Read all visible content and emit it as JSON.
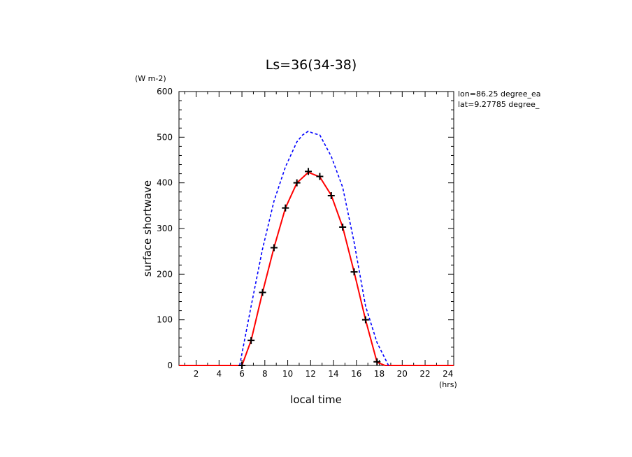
{
  "chart_data": {
    "type": "line",
    "title": "Ls=36(34-38)",
    "xlabel": "local time",
    "ylabel": "surface shortwave",
    "x_unit": "(hrs)",
    "y_unit": "(W m-2)",
    "annotations": [
      "lon=86.25 degree_ea",
      "lat=9.27785 degree_"
    ],
    "xlim": [
      0.5,
      24.5
    ],
    "ylim": [
      0,
      600
    ],
    "x_ticks": [
      2,
      4,
      6,
      8,
      10,
      12,
      14,
      16,
      18,
      20,
      22,
      24
    ],
    "y_ticks": [
      0,
      100,
      200,
      300,
      400,
      500,
      600
    ],
    "grid": false,
    "series": [
      {
        "style": "red-solid",
        "color": "#ff0000",
        "x": [
          0.5,
          1.5,
          2.5,
          3.5,
          4.5,
          5.5,
          6.0,
          6.8,
          7.8,
          8.8,
          9.8,
          10.8,
          11.8,
          12.8,
          13.8,
          14.8,
          15.8,
          16.8,
          17.8,
          18.5,
          19.5,
          20.5,
          21.5,
          22.5,
          23.5,
          24.5
        ],
        "values": [
          0,
          0,
          0,
          0,
          0,
          0,
          0,
          55,
          160,
          258,
          345,
          400,
          423,
          413,
          373,
          303,
          205,
          100,
          7,
          0,
          0,
          0,
          0,
          0,
          0,
          0
        ]
      },
      {
        "style": "blue-dashed",
        "color": "#0000ff",
        "x": [
          5.8,
          6.8,
          7.8,
          8.8,
          9.8,
          10.8,
          11.3,
          11.8,
          12.3,
          12.8,
          13.8,
          14.8,
          15.8,
          16.8,
          17.8,
          18.8
        ],
        "values": [
          0,
          130,
          255,
          360,
          435,
          490,
          505,
          513,
          508,
          505,
          458,
          390,
          270,
          130,
          50,
          0
        ]
      },
      {
        "style": "black-plus-markers",
        "color": "#000000",
        "x": [
          6.0,
          6.8,
          7.8,
          8.8,
          9.8,
          10.8,
          11.8,
          12.8,
          13.8,
          14.8,
          15.8,
          16.8,
          17.8
        ],
        "values": [
          0,
          55,
          160,
          258,
          345,
          400,
          425,
          414,
          372,
          303,
          205,
          100,
          8
        ]
      }
    ]
  }
}
